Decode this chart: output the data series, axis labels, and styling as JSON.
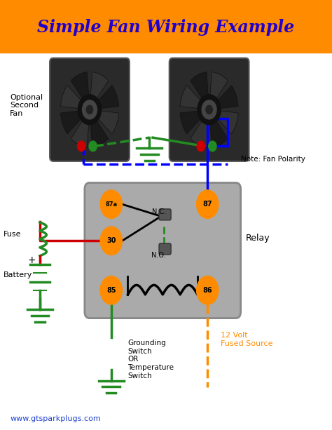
{
  "title": "Simple Fan Wiring Example",
  "title_color": "#2200CC",
  "title_bg": "#FF8C00",
  "bg_color": "#FFFFFF",
  "website": "www.gtsparkplugs.com",
  "website_color": "#2244CC",
  "relay_label": "Relay",
  "note_label": "Note: Fan Polarity",
  "optional_label": "Optional\nSecond\nFan",
  "fuse_label": "Fuse",
  "battery_label": "Battery",
  "grounding_label": "Grounding\nSwitch\nOR\nTemperature\nSwitch",
  "volt_label": "12 Volt\nFused Source",
  "nc_label": "N.C.",
  "no_label": "N.O.",
  "orange_color": "#FF8C00",
  "green_color": "#228B22",
  "blue_color": "#0000FF",
  "red_color": "#CC0000",
  "black_color": "#000000",
  "relay_bg": "#AAAAAA"
}
